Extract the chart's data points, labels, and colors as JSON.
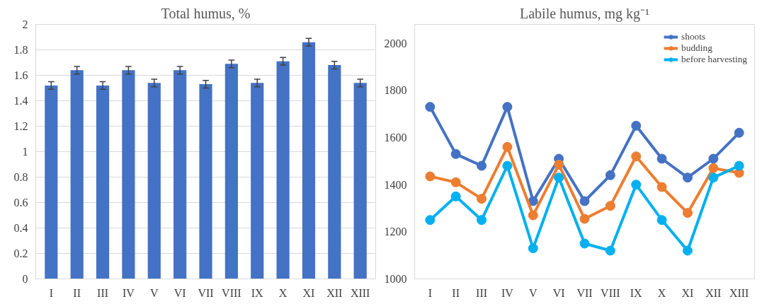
{
  "chart_data": [
    {
      "type": "bar",
      "title": "Total humus, %",
      "categories": [
        "I",
        "II",
        "III",
        "IV",
        "V",
        "VI",
        "VII",
        "VIII",
        "IX",
        "X",
        "XI",
        "XII",
        "XIII"
      ],
      "values": [
        1.52,
        1.64,
        1.52,
        1.64,
        1.54,
        1.64,
        1.53,
        1.69,
        1.54,
        1.71,
        1.86,
        1.68,
        1.54
      ],
      "errors": [
        0.03,
        0.03,
        0.03,
        0.03,
        0.03,
        0.03,
        0.03,
        0.03,
        0.03,
        0.03,
        0.03,
        0.03,
        0.03
      ],
      "color": "#4472c4",
      "ylim": [
        0,
        2
      ],
      "yticks": [
        0,
        0.2,
        0.4,
        0.6,
        0.8,
        1,
        1.2,
        1.4,
        1.6,
        1.8,
        2
      ],
      "grid": "y"
    },
    {
      "type": "line",
      "title": "Labile humus, mg kg⁻¹",
      "categories": [
        "I",
        "II",
        "III",
        "IV",
        "V",
        "VI",
        "VII",
        "VIII",
        "IX",
        "X",
        "XI",
        "XII",
        "XIII"
      ],
      "series": [
        {
          "name": "shoots",
          "color": "#4472c4",
          "values": [
            1730,
            1530,
            1480,
            1730,
            1330,
            1510,
            1330,
            1440,
            1650,
            1510,
            1430,
            1510,
            1620
          ]
        },
        {
          "name": "budding",
          "color": "#ed7d31",
          "values": [
            1435,
            1410,
            1340,
            1560,
            1270,
            1485,
            1255,
            1310,
            1520,
            1390,
            1280,
            1470,
            1450
          ]
        },
        {
          "name": "before harvesting",
          "color": "#00b0f0",
          "values": [
            1250,
            1350,
            1250,
            1480,
            1130,
            1430,
            1150,
            1120,
            1400,
            1250,
            1120,
            1430,
            1480
          ]
        }
      ],
      "ylim": [
        1000,
        2080
      ],
      "yticks": [
        1000,
        1200,
        1400,
        1600,
        1800,
        2000
      ],
      "grid": false,
      "legend": "top right",
      "marker": "circle",
      "line_style": "solid"
    }
  ]
}
